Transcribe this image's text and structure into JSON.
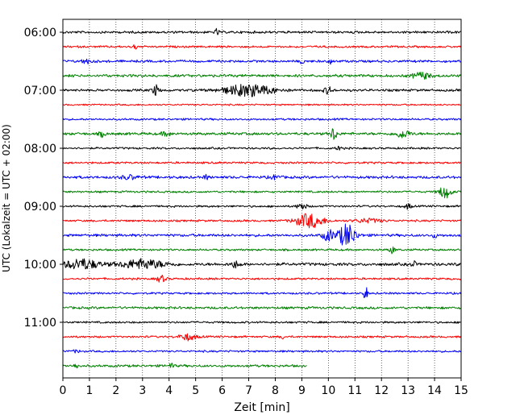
{
  "chart_data": {
    "type": "line",
    "title": "",
    "xlabel": "Zeit  [min]",
    "ylabel": "UTC (Lokalzeit = UTC + 02:00)",
    "xlim": [
      0,
      15
    ],
    "x_ticks": [
      "0",
      "1",
      "2",
      "3",
      "4",
      "5",
      "6",
      "7",
      "8",
      "9",
      "10",
      "11",
      "12",
      "13",
      "14",
      "15"
    ],
    "y_tick_labels": [
      "06:00",
      "07:00",
      "08:00",
      "09:00",
      "10:00",
      "11:00"
    ],
    "y_tick_trace_index": [
      0,
      4,
      8,
      12,
      16,
      20
    ],
    "grid": "vertical dotted at every minute",
    "legend": "none",
    "trace_colors": [
      "#000000",
      "#ff0000",
      "#0000ff",
      "#008000"
    ],
    "series": [
      {
        "start": "06:00",
        "end_minute": 15,
        "base_amplitude": 0.18,
        "events": [
          {
            "t": 5.8,
            "amp": 0.5,
            "width": 0.1
          }
        ]
      },
      {
        "start": "06:15",
        "end_minute": 15,
        "base_amplitude": 0.15,
        "events": [
          {
            "t": 2.7,
            "amp": 0.6,
            "width": 0.1
          }
        ]
      },
      {
        "start": "06:30",
        "end_minute": 15,
        "base_amplitude": 0.18,
        "events": [
          {
            "t": 0.9,
            "amp": 0.3,
            "width": 0.4
          },
          {
            "t": 9.0,
            "amp": 0.4,
            "width": 0.1
          },
          {
            "t": 10.1,
            "amp": 0.5,
            "width": 0.1
          }
        ]
      },
      {
        "start": "06:45",
        "end_minute": 15,
        "base_amplitude": 0.2,
        "events": [
          {
            "t": 13.5,
            "amp": 0.5,
            "width": 0.6
          }
        ]
      },
      {
        "start": "07:00",
        "end_minute": 15,
        "base_amplitude": 0.18,
        "events": [
          {
            "t": 3.5,
            "amp": 0.8,
            "width": 0.2
          },
          {
            "t": 7.0,
            "amp": 0.9,
            "width": 1.8
          },
          {
            "t": 10.0,
            "amp": 0.5,
            "width": 0.3
          }
        ]
      },
      {
        "start": "07:15",
        "end_minute": 15,
        "base_amplitude": 0.12,
        "events": []
      },
      {
        "start": "07:30",
        "end_minute": 15,
        "base_amplitude": 0.15,
        "events": []
      },
      {
        "start": "07:45",
        "end_minute": 15,
        "base_amplitude": 0.2,
        "events": [
          {
            "t": 1.5,
            "amp": 0.4,
            "width": 0.2
          },
          {
            "t": 3.9,
            "amp": 0.3,
            "width": 0.3
          },
          {
            "t": 10.2,
            "amp": 1.0,
            "width": 0.2
          },
          {
            "t": 12.8,
            "amp": 0.6,
            "width": 0.5
          }
        ]
      },
      {
        "start": "08:00",
        "end_minute": 15,
        "base_amplitude": 0.15,
        "events": [
          {
            "t": 10.4,
            "amp": 0.5,
            "width": 0.1
          }
        ]
      },
      {
        "start": "08:15",
        "end_minute": 15,
        "base_amplitude": 0.15,
        "events": []
      },
      {
        "start": "08:30",
        "end_minute": 15,
        "base_amplitude": 0.2,
        "events": [
          {
            "t": 2.5,
            "amp": 0.3,
            "width": 0.5
          },
          {
            "t": 5.4,
            "amp": 0.4,
            "width": 0.1
          },
          {
            "t": 8.0,
            "amp": 0.3,
            "width": 0.3
          }
        ]
      },
      {
        "start": "08:45",
        "end_minute": 15,
        "base_amplitude": 0.15,
        "events": [
          {
            "t": 14.4,
            "amp": 1.0,
            "width": 0.4
          }
        ]
      },
      {
        "start": "09:00",
        "end_minute": 15,
        "base_amplitude": 0.15,
        "events": [
          {
            "t": 9.0,
            "amp": 0.5,
            "width": 0.3
          },
          {
            "t": 13.0,
            "amp": 0.4,
            "width": 0.2
          }
        ]
      },
      {
        "start": "09:15",
        "end_minute": 15,
        "base_amplitude": 0.15,
        "events": [
          {
            "t": 9.3,
            "amp": 1.1,
            "width": 1.0
          },
          {
            "t": 11.5,
            "amp": 0.3,
            "width": 1.0
          }
        ]
      },
      {
        "start": "09:30",
        "end_minute": 15,
        "base_amplitude": 0.2,
        "events": [
          {
            "t": 10.0,
            "amp": 0.8,
            "width": 0.4
          },
          {
            "t": 10.7,
            "amp": 1.8,
            "width": 0.6
          },
          {
            "t": 14.0,
            "amp": 0.4,
            "width": 0.1
          }
        ]
      },
      {
        "start": "09:45",
        "end_minute": 15,
        "base_amplitude": 0.15,
        "events": [
          {
            "t": 12.4,
            "amp": 0.5,
            "width": 0.2
          }
        ]
      },
      {
        "start": "10:00",
        "end_minute": 15,
        "base_amplitude": 0.22,
        "events": [
          {
            "t": 0.7,
            "amp": 0.8,
            "width": 1.2
          },
          {
            "t": 3.0,
            "amp": 0.7,
            "width": 1.6
          },
          {
            "t": 6.5,
            "amp": 0.5,
            "width": 0.3
          },
          {
            "t": 13.2,
            "amp": 0.6,
            "width": 0.1
          }
        ]
      },
      {
        "start": "10:15",
        "end_minute": 15,
        "base_amplitude": 0.15,
        "events": [
          {
            "t": 3.7,
            "amp": 0.5,
            "width": 0.3
          }
        ]
      },
      {
        "start": "10:30",
        "end_minute": 15,
        "base_amplitude": 0.15,
        "events": [
          {
            "t": 11.4,
            "amp": 1.2,
            "width": 0.1
          }
        ]
      },
      {
        "start": "10:45",
        "end_minute": 15,
        "base_amplitude": 0.18,
        "events": []
      },
      {
        "start": "11:00",
        "end_minute": 15,
        "base_amplitude": 0.15,
        "events": []
      },
      {
        "start": "11:15",
        "end_minute": 15,
        "base_amplitude": 0.15,
        "events": [
          {
            "t": 4.7,
            "amp": 0.5,
            "width": 0.6
          },
          {
            "t": 8.3,
            "amp": 0.3,
            "width": 0.1
          }
        ]
      },
      {
        "start": "11:30",
        "end_minute": 15,
        "base_amplitude": 0.15,
        "events": [
          {
            "t": 0.5,
            "amp": 0.2,
            "width": 0.2
          }
        ]
      },
      {
        "start": "11:45",
        "end_minute": 9.2,
        "base_amplitude": 0.18,
        "events": [
          {
            "t": 0.5,
            "amp": 0.5,
            "width": 0.1
          },
          {
            "t": 4.1,
            "amp": 0.6,
            "width": 0.1
          }
        ]
      }
    ]
  }
}
